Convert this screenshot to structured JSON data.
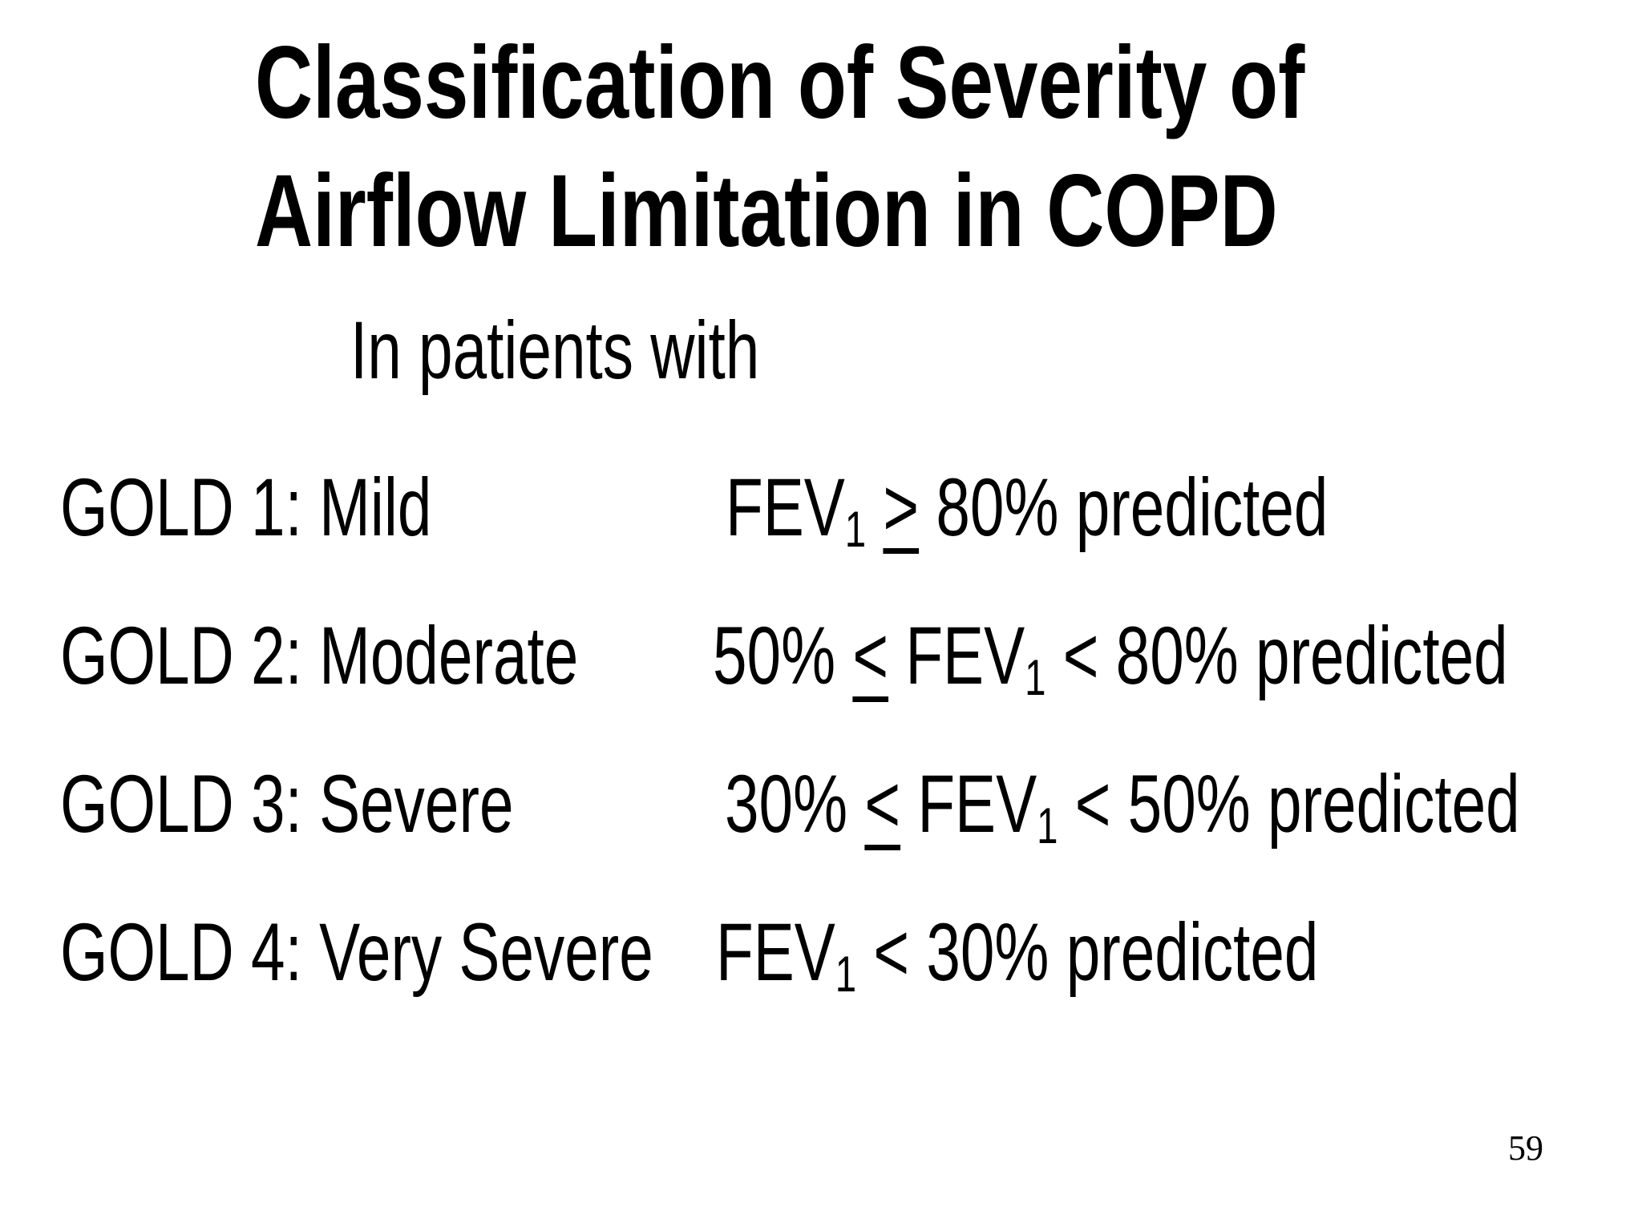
{
  "slide": {
    "colors": {
      "background": "#ffffff",
      "text": "#000000"
    },
    "title": {
      "line1": "Classification of Severity of",
      "line2": "Airflow Limitation in COPD"
    },
    "subtitle": "In patients with",
    "rows": [
      {
        "label": "GOLD 1: Mild",
        "criteria": [
          {
            "t": "FEV"
          },
          {
            "t": "1",
            "style": "sub"
          },
          {
            "t": " "
          },
          {
            "t": ">",
            "style": "underline"
          },
          {
            "t": " 80% predicted"
          }
        ]
      },
      {
        "label": "GOLD 2: Moderate",
        "criteria": [
          {
            "t": "50% "
          },
          {
            "t": "<",
            "style": "underline"
          },
          {
            "t": " FEV"
          },
          {
            "t": "1",
            "style": "sub"
          },
          {
            "t": " < 80% predicted"
          }
        ]
      },
      {
        "label": "GOLD 3: Severe",
        "criteria": [
          {
            "t": "30% "
          },
          {
            "t": "<",
            "style": "underline"
          },
          {
            "t": " FEV"
          },
          {
            "t": "1",
            "style": "sub"
          },
          {
            "t": " < 50% predicted"
          }
        ]
      },
      {
        "label": "GOLD 4: Very Severe",
        "criteria": [
          {
            "t": "FEV"
          },
          {
            "t": "1",
            "style": "sub"
          },
          {
            "t": " < 30% predicted"
          }
        ]
      }
    ],
    "page_number": "59"
  }
}
